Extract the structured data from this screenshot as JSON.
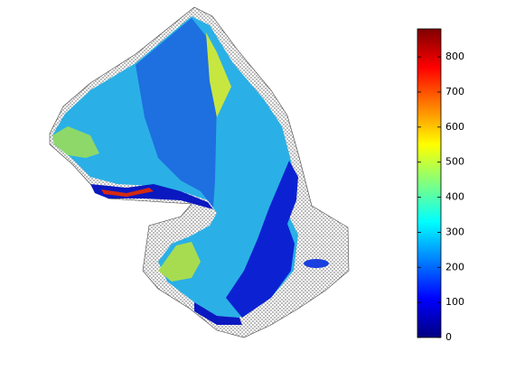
{
  "chart_data": {
    "type": "surface",
    "colorbar": {
      "colormap": "jet",
      "clim": [
        0,
        880
      ],
      "ticks": [
        0,
        100,
        200,
        300,
        400,
        500,
        600,
        700,
        800
      ]
    }
  }
}
